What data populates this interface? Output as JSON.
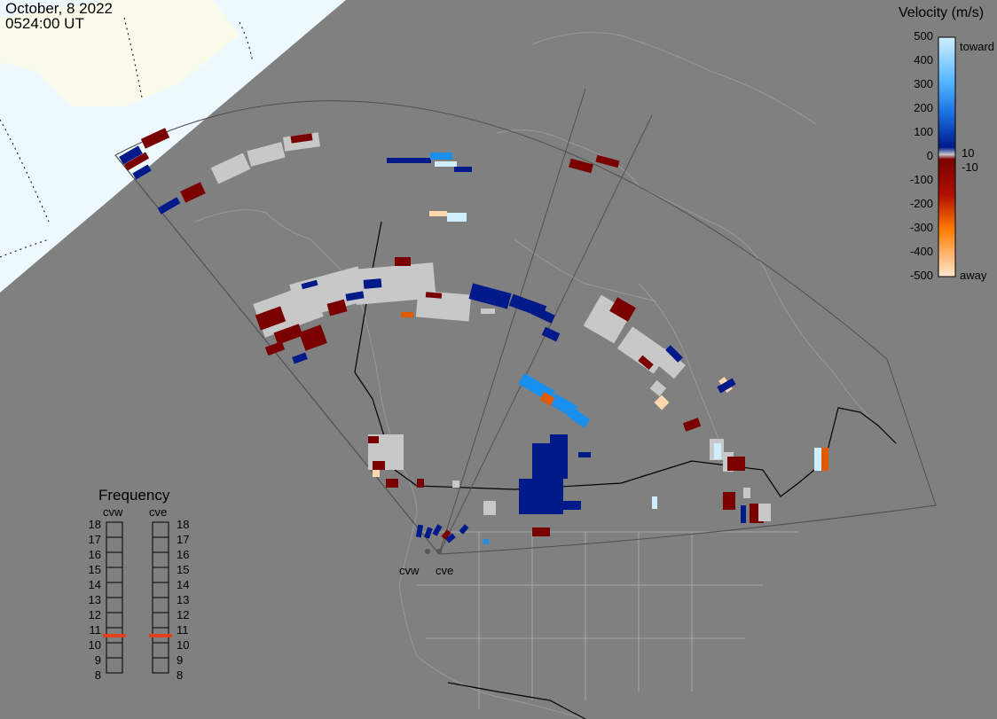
{
  "timestamp": {
    "date": "October, 8 2022",
    "time": "0524:00 UT"
  },
  "velocity_legend": {
    "title": "Velocity (m/s)",
    "ticks": [
      "500",
      "400",
      "300",
      "200",
      "100",
      "0",
      "-100",
      "-200",
      "-300",
      "-400",
      "-500"
    ],
    "inner_ticks": [
      "10",
      "-10"
    ],
    "labels": {
      "toward": "toward",
      "away": "away"
    },
    "colors": {
      "toward_high": "#cfeeff",
      "toward_mid": "#1a90ee",
      "toward_low": "#001a8a",
      "away_low": "#7a0000",
      "away_mid": "#e05a00",
      "away_high": "#ffd8b0",
      "ground_scatter": "#c8c8c8",
      "background": "#808080"
    }
  },
  "frequency_panel": {
    "title": "Frequency",
    "radars": [
      "cvw",
      "cve"
    ],
    "values": [
      "18",
      "17",
      "16",
      "15",
      "14",
      "13",
      "12",
      "11",
      "10",
      "9",
      "8"
    ],
    "marker_color": "#e2401a",
    "markers_mhz": {
      "cvw": 10.5,
      "cve": 10.5
    }
  },
  "radar_sites": {
    "cvw": "cvw",
    "cve": "cve"
  }
}
